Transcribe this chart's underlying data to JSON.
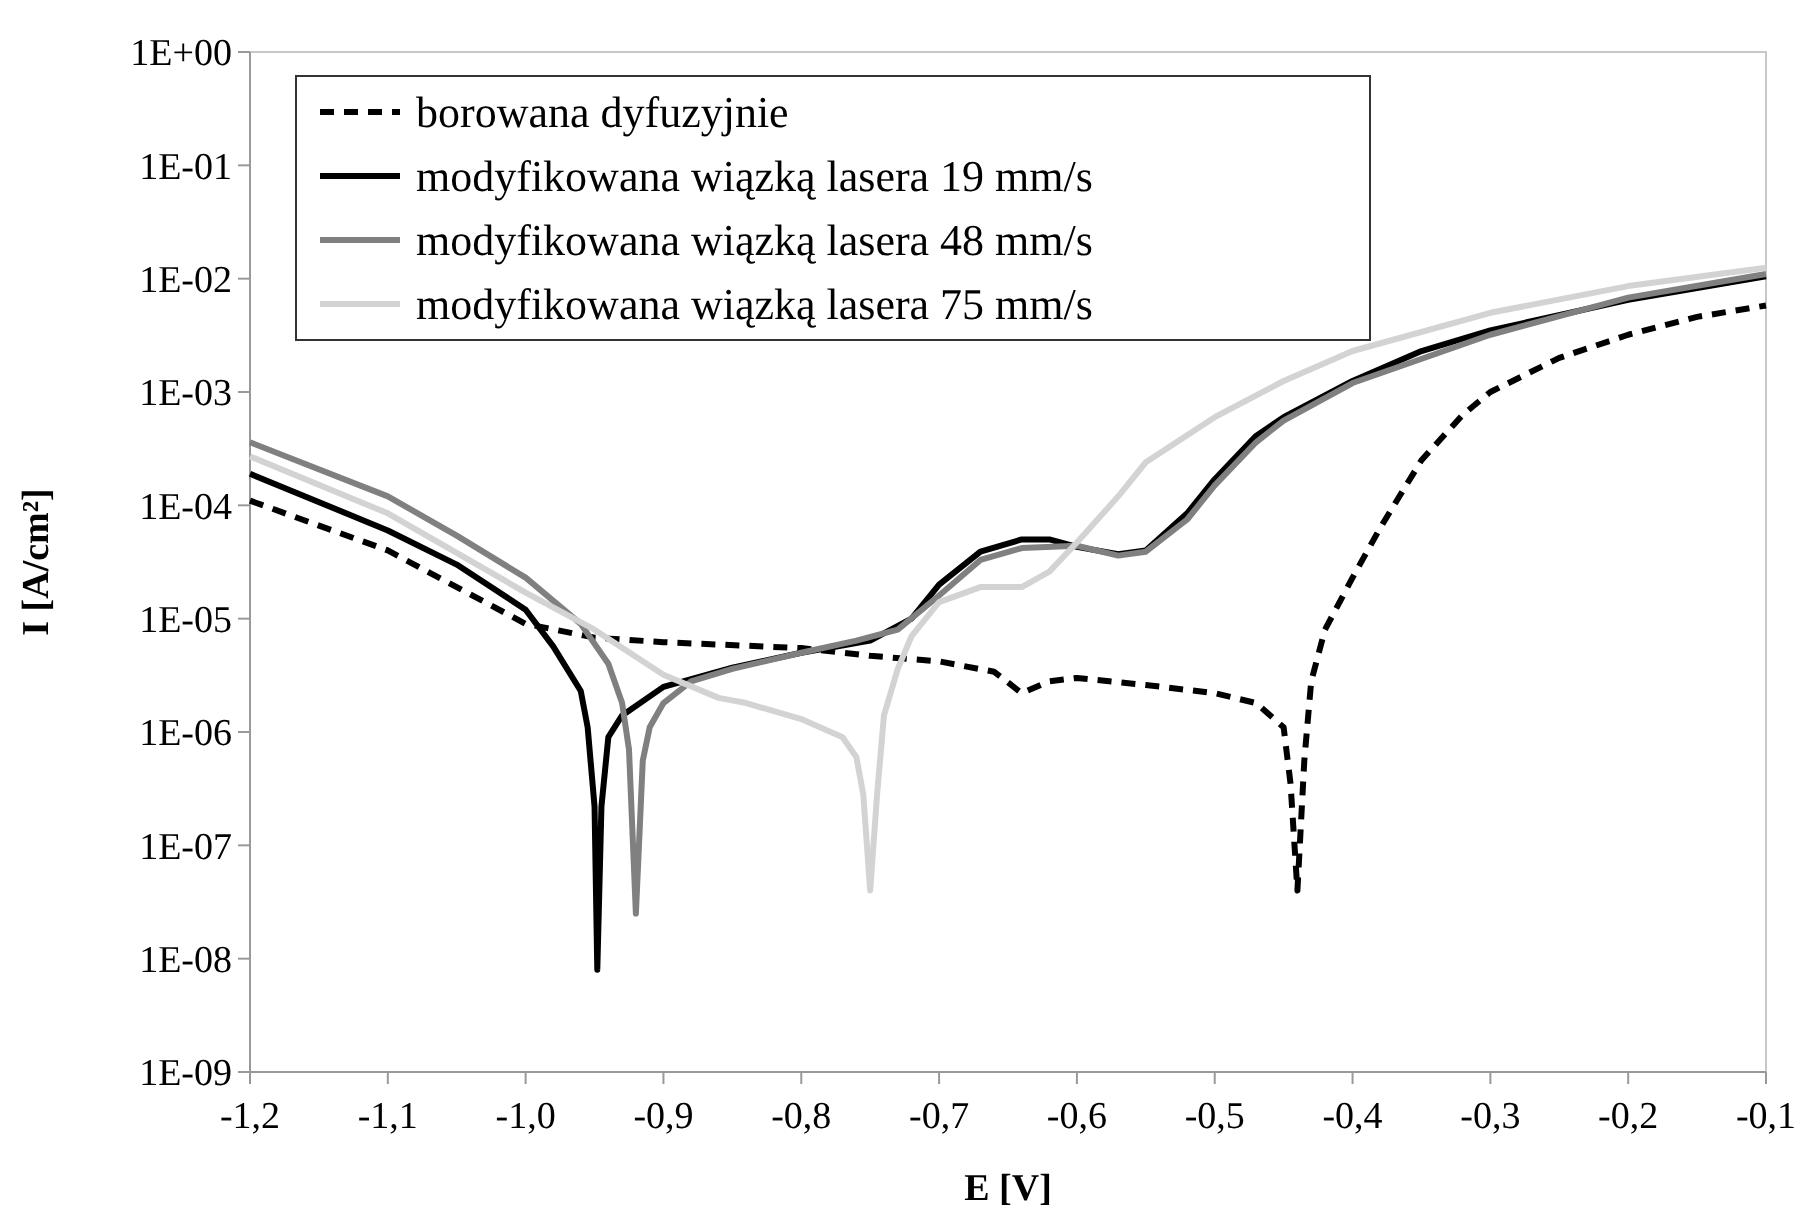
{
  "chart_data": {
    "type": "line",
    "xlabel": "E [V]",
    "ylabel": "I [A/cm²]",
    "log": "y",
    "legend": "top left",
    "xlim": [
      -1.2,
      -0.1
    ],
    "ylim": [
      1e-09,
      1
    ],
    "xticks": [
      {
        "value": -1.2,
        "label": "-1,2"
      },
      {
        "value": -1.1,
        "label": "-1,1"
      },
      {
        "value": -1.0,
        "label": "-1,0"
      },
      {
        "value": -0.9,
        "label": "-0,9"
      },
      {
        "value": -0.8,
        "label": "-0,8"
      },
      {
        "value": -0.7,
        "label": "-0,7"
      },
      {
        "value": -0.6,
        "label": "-0,6"
      },
      {
        "value": -0.5,
        "label": "-0,5"
      },
      {
        "value": -0.4,
        "label": "-0,4"
      },
      {
        "value": -0.3,
        "label": "-0,3"
      },
      {
        "value": -0.2,
        "label": "-0,2"
      },
      {
        "value": -0.1,
        "label": "-0,1"
      }
    ],
    "yticks": [
      {
        "value": 1,
        "label": "1E+00"
      },
      {
        "value": 0.1,
        "label": "1E-01"
      },
      {
        "value": 0.01,
        "label": "1E-02"
      },
      {
        "value": 0.001,
        "label": "1E-03"
      },
      {
        "value": 0.0001,
        "label": "1E-04"
      },
      {
        "value": 1e-05,
        "label": "1E-05"
      },
      {
        "value": 1e-06,
        "label": "1E-06"
      },
      {
        "value": 1e-07,
        "label": "1E-07"
      },
      {
        "value": 1e-08,
        "label": "1E-08"
      },
      {
        "value": 1e-09,
        "label": "1E-09"
      }
    ],
    "series": [
      {
        "name": "borowana dyfuzyjnie",
        "color": "#000000",
        "line_style": "dashed",
        "x": [
          -1.2,
          -1.1,
          -1.0,
          -0.95,
          -0.9,
          -0.8,
          -0.75,
          -0.7,
          -0.66,
          -0.64,
          -0.62,
          -0.6,
          -0.55,
          -0.5,
          -0.47,
          -0.45,
          -0.445,
          -0.44,
          -0.435,
          -0.43,
          -0.42,
          -0.4,
          -0.38,
          -0.35,
          -0.32,
          -0.3,
          -0.25,
          -0.2,
          -0.15,
          -0.1
        ],
        "values": [
          0.00011,
          4e-05,
          9e-06,
          6.8e-06,
          6.2e-06,
          5.5e-06,
          4.7e-06,
          4.2e-06,
          3.4e-06,
          2.2e-06,
          2.8e-06,
          3e-06,
          2.6e-06,
          2.2e-06,
          1.8e-06,
          1.1e-06,
          3.5e-07,
          4e-08,
          5.6e-07,
          2.8e-06,
          8e-06,
          2.3e-05,
          6.3e-05,
          0.00025,
          0.00063,
          0.001,
          0.002,
          0.0032,
          0.0046,
          0.0058
        ]
      },
      {
        "name": "modyfikowana wiązką lasera  19 mm/s",
        "color": "#000000",
        "line_style": "solid",
        "x": [
          -1.2,
          -1.1,
          -1.05,
          -1.0,
          -0.98,
          -0.96,
          -0.955,
          -0.95,
          -0.948,
          -0.945,
          -0.94,
          -0.93,
          -0.9,
          -0.85,
          -0.8,
          -0.75,
          -0.72,
          -0.7,
          -0.67,
          -0.64,
          -0.62,
          -0.6,
          -0.57,
          -0.55,
          -0.52,
          -0.5,
          -0.47,
          -0.45,
          -0.4,
          -0.35,
          -0.3,
          -0.2,
          -0.1
        ],
        "values": [
          0.00019,
          6e-05,
          3e-05,
          1.2e-05,
          5.7e-06,
          2.3e-06,
          1.1e-06,
          2.2e-07,
          8e-09,
          2.2e-07,
          9e-07,
          1.4e-06,
          2.5e-06,
          3.7e-06,
          5e-06,
          6.4e-06,
          1e-05,
          2e-05,
          3.9e-05,
          5e-05,
          5e-05,
          4.3e-05,
          3.7e-05,
          4e-05,
          8.5e-05,
          0.00017,
          0.00041,
          0.0006,
          0.00125,
          0.0023,
          0.0035,
          0.0065,
          0.0105
        ]
      },
      {
        "name": "modyfikowana wiązką lasera  48 mm/s",
        "color": "#808080",
        "line_style": "solid",
        "x": [
          -1.2,
          -1.1,
          -1.05,
          -1.0,
          -0.96,
          -0.94,
          -0.93,
          -0.925,
          -0.92,
          -0.915,
          -0.91,
          -0.9,
          -0.88,
          -0.85,
          -0.8,
          -0.76,
          -0.73,
          -0.7,
          -0.67,
          -0.64,
          -0.6,
          -0.57,
          -0.55,
          -0.52,
          -0.5,
          -0.47,
          -0.45,
          -0.4,
          -0.3,
          -0.2,
          -0.1
        ],
        "values": [
          0.00036,
          0.00012,
          5.4e-05,
          2.3e-05,
          9e-06,
          4e-06,
          1.8e-06,
          7e-07,
          2.5e-08,
          5.6e-07,
          1.1e-06,
          1.8e-06,
          2.8e-06,
          3.6e-06,
          5e-06,
          6.4e-06,
          8e-06,
          1.6e-05,
          3.3e-05,
          4.2e-05,
          4.4e-05,
          3.6e-05,
          3.9e-05,
          7.5e-05,
          0.00015,
          0.00036,
          0.00056,
          0.0012,
          0.0032,
          0.0068,
          0.011
        ]
      },
      {
        "name": "modyfikowana wiązką lasera  75 mm/s",
        "color": "#d3d3d3",
        "line_style": "solid",
        "x": [
          -1.2,
          -1.1,
          -1.05,
          -1.0,
          -0.95,
          -0.9,
          -0.86,
          -0.84,
          -0.8,
          -0.77,
          -0.76,
          -0.755,
          -0.75,
          -0.745,
          -0.74,
          -0.73,
          -0.72,
          -0.7,
          -0.67,
          -0.64,
          -0.62,
          -0.6,
          -0.57,
          -0.55,
          -0.5,
          -0.45,
          -0.4,
          -0.3,
          -0.2,
          -0.1
        ],
        "values": [
          0.00027,
          8.5e-05,
          3.8e-05,
          1.7e-05,
          8e-06,
          3.2e-06,
          2e-06,
          1.8e-06,
          1.3e-06,
          9e-07,
          6e-07,
          2.8e-07,
          4e-08,
          2.8e-07,
          1.4e-06,
          3.6e-06,
          7e-06,
          1.4e-05,
          1.9e-05,
          1.9e-05,
          2.6e-05,
          4.7e-05,
          0.00012,
          0.00024,
          0.0006,
          0.00125,
          0.0023,
          0.005,
          0.0086,
          0.0125
        ]
      }
    ]
  }
}
